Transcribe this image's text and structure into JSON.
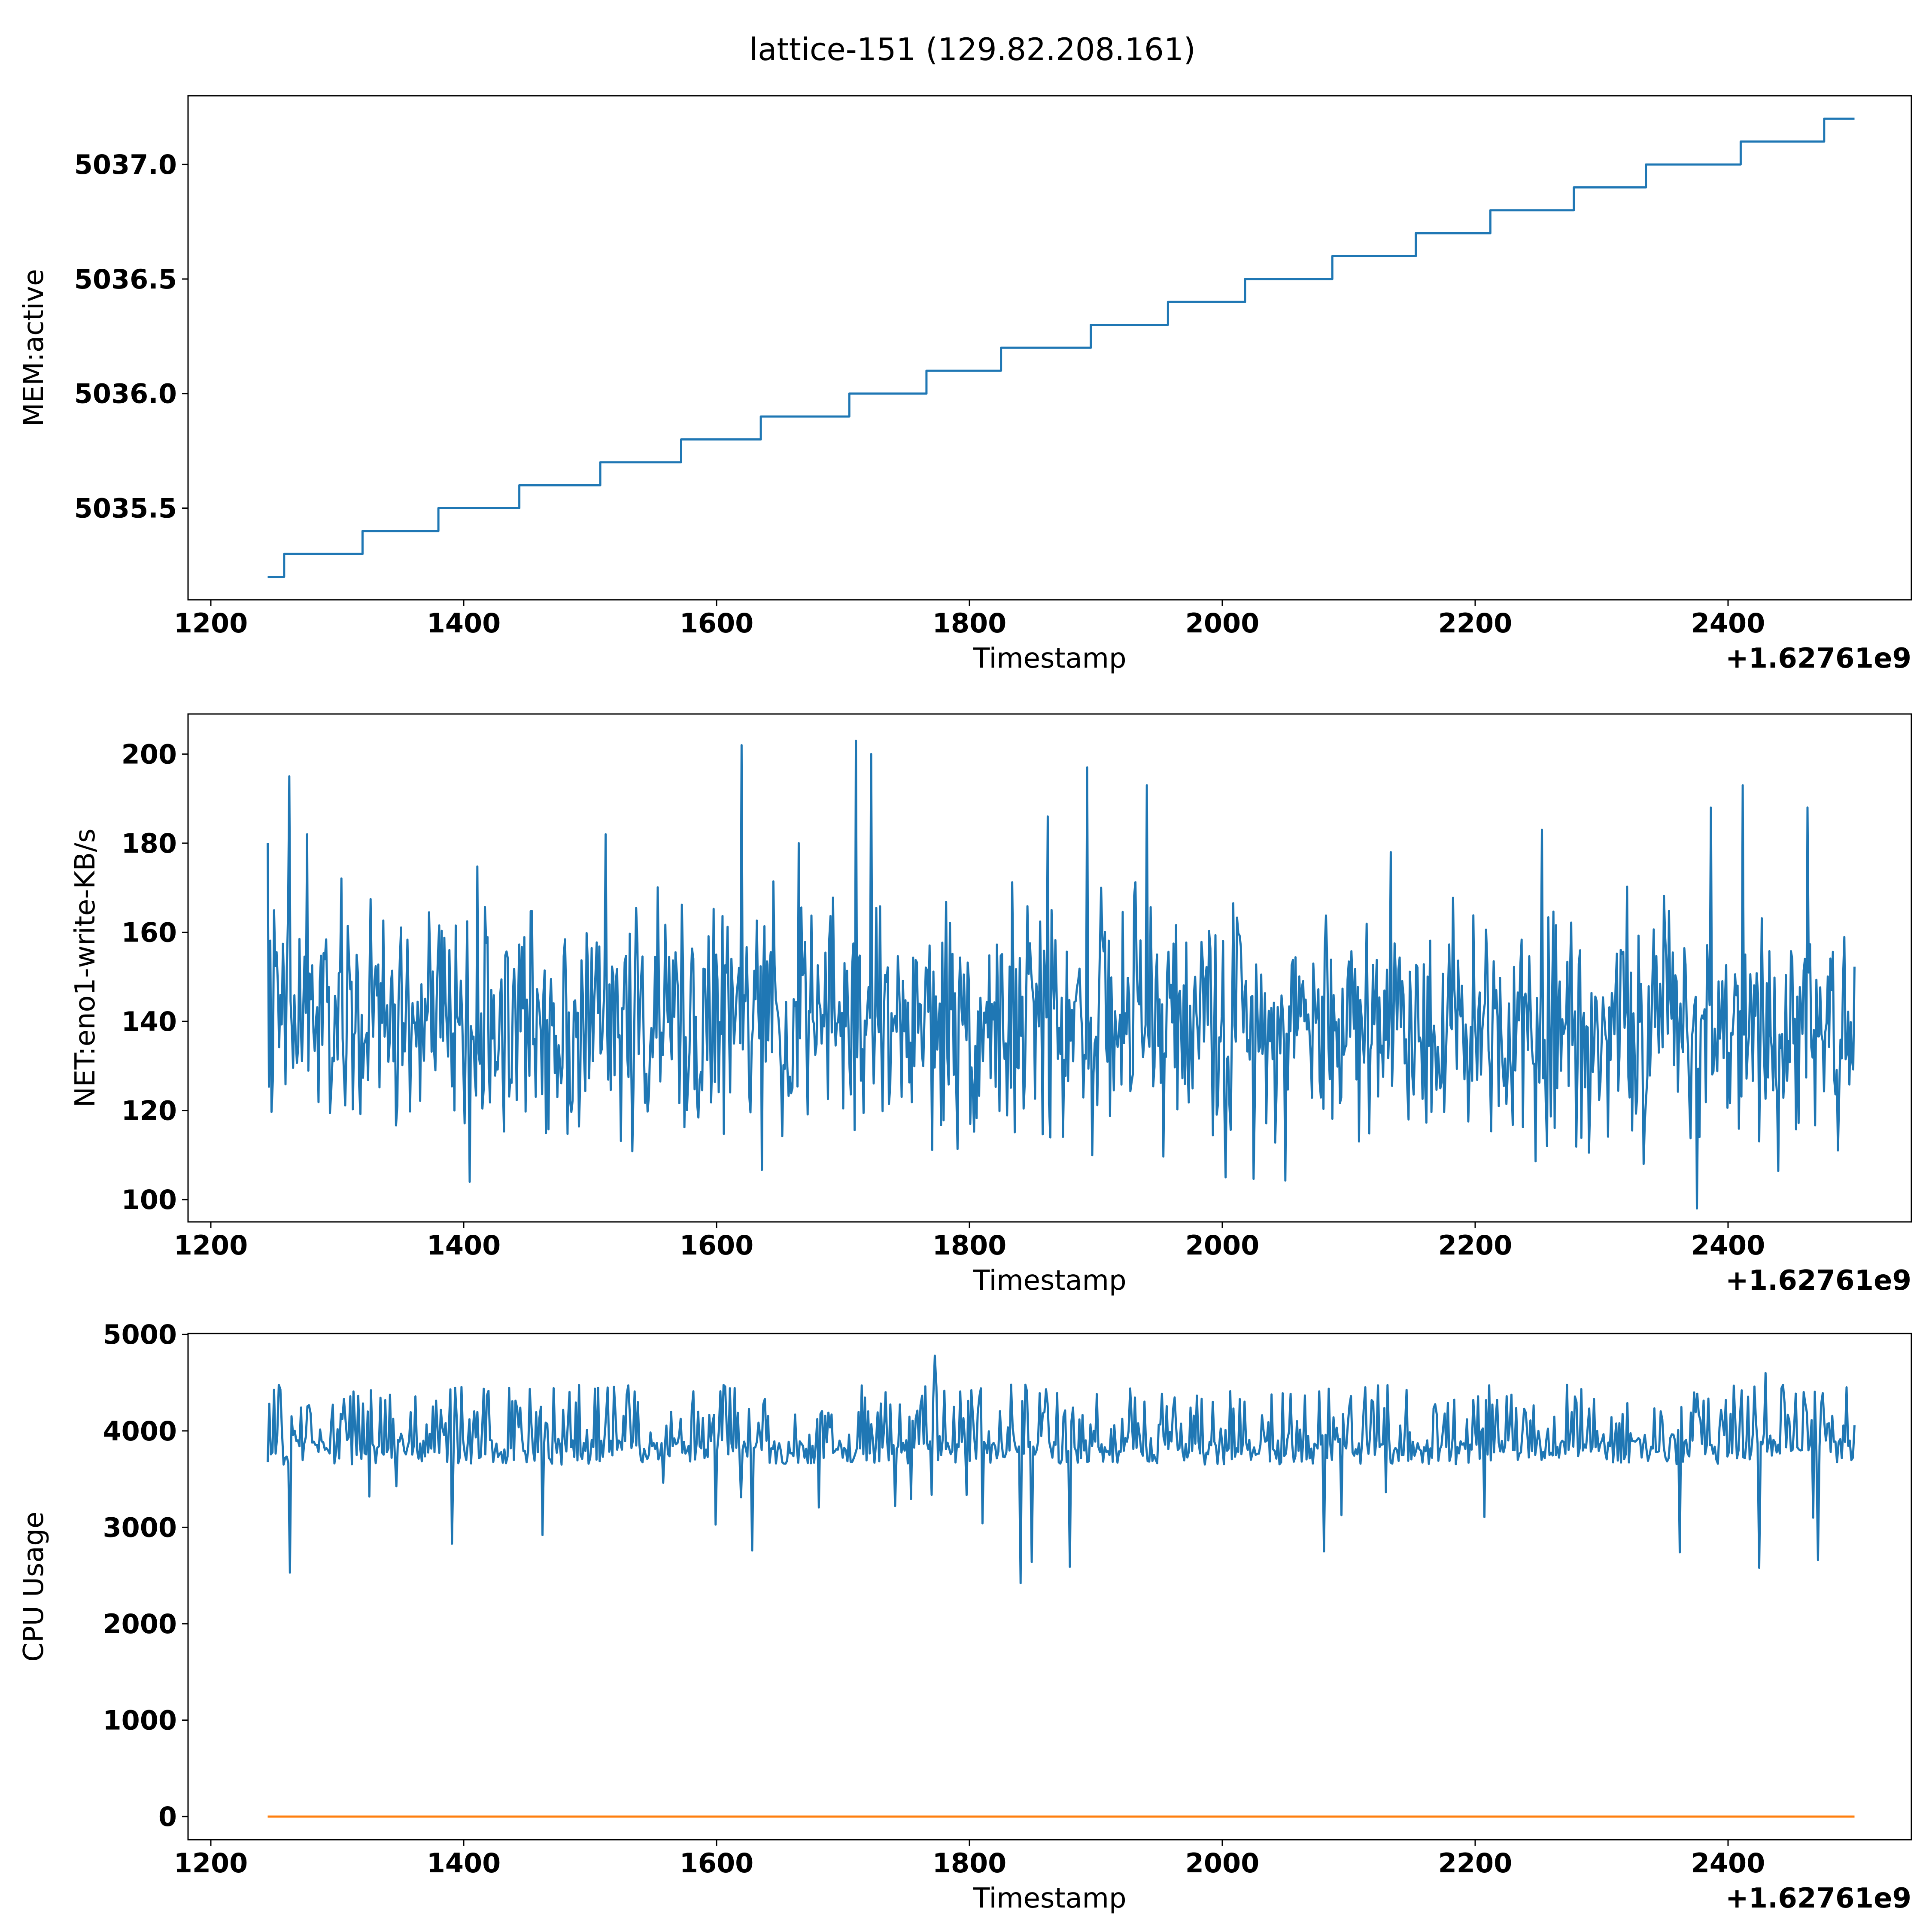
{
  "figure_title": "lattice-151 (129.82.208.161)",
  "chart_data": [
    {
      "type": "line",
      "ylabel": "MEM:active",
      "xlabel": "Timestamp",
      "x_offset_label": "+1.62761e9",
      "xlim": [
        1182,
        2545
      ],
      "ylim": [
        5035.1,
        5037.3
      ],
      "xticks": [
        1200,
        1400,
        1600,
        1800,
        2000,
        2200,
        2400
      ],
      "yticks": [
        5035.5,
        5036.0,
        5036.5,
        5037.0
      ],
      "ytick_labels": [
        "5035.5",
        "5036.0",
        "5036.5",
        "5037.0"
      ],
      "colors": [
        "#1f77b4"
      ],
      "series": [
        {
          "kind": "step",
          "x": [
            1245,
            1258,
            1320,
            1380,
            1444,
            1508,
            1572,
            1635,
            1705,
            1766,
            1825,
            1896,
            1957,
            2018,
            2087,
            2153,
            2212,
            2278,
            2335,
            2410,
            2476,
            2500
          ],
          "values": [
            5035.2,
            5035.3,
            5035.4,
            5035.5,
            5035.6,
            5035.7,
            5035.8,
            5035.9,
            5036.0,
            5036.1,
            5036.2,
            5036.3,
            5036.4,
            5036.5,
            5036.6,
            5036.7,
            5036.8,
            5036.9,
            5037.0,
            5037.1,
            5037.2,
            5037.2
          ]
        }
      ]
    },
    {
      "type": "line",
      "ylabel": "NET:eno1-write-KB/s",
      "xlabel": "Timestamp",
      "x_offset_label": "+1.62761e9",
      "xlim": [
        1182,
        2545
      ],
      "ylim": [
        95,
        209
      ],
      "xticks": [
        1200,
        1400,
        1600,
        1800,
        2000,
        2200,
        2400
      ],
      "yticks": [
        100,
        120,
        140,
        160,
        180,
        200
      ],
      "ytick_labels": [
        "100",
        "120",
        "140",
        "160",
        "180",
        "200"
      ],
      "colors": [
        "#1f77b4"
      ],
      "series": [
        {
          "kind": "noise",
          "x_start": 1245,
          "x_end": 2500,
          "n": 1250,
          "center": 140,
          "low": 98,
          "high": 204,
          "spikes": [
            [
              1245,
              180
            ],
            [
              1262,
              195
            ],
            [
              1276,
              182
            ],
            [
              1405,
              104
            ],
            [
              1512,
              182
            ],
            [
              1620,
              202
            ],
            [
              1665,
              180
            ],
            [
              1710,
              203
            ],
            [
              1722,
              200
            ],
            [
              1862,
              186
            ],
            [
              1893,
              197
            ],
            [
              1940,
              193
            ],
            [
              2003,
              105
            ],
            [
              2133,
              178
            ],
            [
              2253,
              183
            ],
            [
              2333,
              108
            ],
            [
              2375,
              98
            ],
            [
              2386,
              188
            ],
            [
              2412,
              193
            ],
            [
              2463,
              188
            ]
          ]
        }
      ]
    },
    {
      "type": "line",
      "ylabel": "CPU Usage",
      "xlabel": "Timestamp",
      "x_offset_label": "+1.62761e9",
      "xlim": [
        1182,
        2545
      ],
      "ylim": [
        -240,
        5010
      ],
      "xticks": [
        1200,
        1400,
        1600,
        1800,
        2000,
        2200,
        2400
      ],
      "yticks": [
        0,
        1000,
        2000,
        3000,
        4000,
        5000
      ],
      "ytick_labels": [
        "0",
        "1000",
        "2000",
        "3000",
        "4000",
        "5000"
      ],
      "colors": [
        "#1f77b4",
        "#ff7f0e"
      ],
      "series": [
        {
          "kind": "noise",
          "x_start": 1245,
          "x_end": 2500,
          "n": 1000,
          "center": 3850,
          "low": 2420,
          "high": 4780,
          "spikes": [
            [
              1263,
              2530
            ],
            [
              1391,
              2830
            ],
            [
              1462,
              2920
            ],
            [
              1628,
              2760
            ],
            [
              1772,
              4780
            ],
            [
              1840,
              2420
            ],
            [
              1849,
              2640
            ],
            [
              1879,
              2590
            ],
            [
              2081,
              2750
            ],
            [
              2362,
              2740
            ],
            [
              2424,
              2580
            ],
            [
              2430,
              4600
            ],
            [
              2471,
              2660
            ]
          ]
        },
        {
          "kind": "flat",
          "x": [
            1245,
            2500
          ],
          "values": [
            0,
            0
          ]
        }
      ]
    }
  ]
}
